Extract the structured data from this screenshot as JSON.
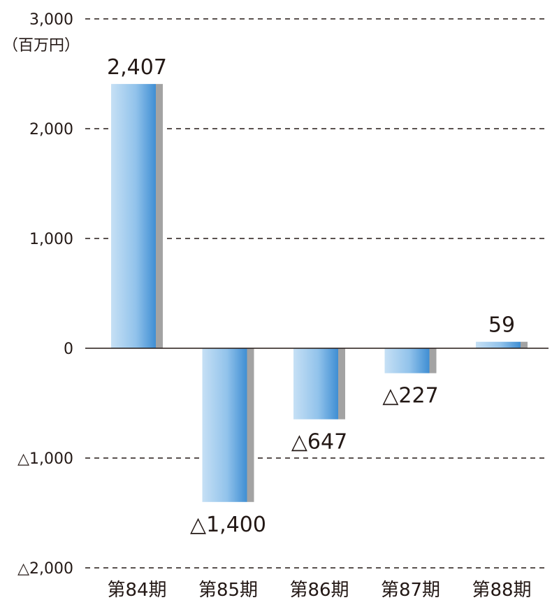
{
  "chart_data": {
    "type": "bar",
    "unit": "（百万円）",
    "categories": [
      "第84期",
      "第85期",
      "第86期",
      "第87期",
      "第88期"
    ],
    "values": [
      2407,
      -1400,
      -647,
      -227,
      59
    ],
    "value_labels": [
      "2,407",
      "△1,400",
      "△647",
      "△227",
      "59"
    ],
    "ylim": [
      -2000,
      3000
    ],
    "yticks": [
      3000,
      2000,
      1000,
      0,
      -1000,
      -2000
    ],
    "ytick_labels": [
      "3,000",
      "2,000",
      "1,000",
      "0",
      "△1,000",
      "△2,000"
    ],
    "grid": true,
    "colors": {
      "bar_light": "#c6e0f5",
      "bar_dark": "#3f8ed3",
      "bar_shadow": "#a3a3a3",
      "grid": "#231815",
      "zero_line": "#231815"
    }
  }
}
